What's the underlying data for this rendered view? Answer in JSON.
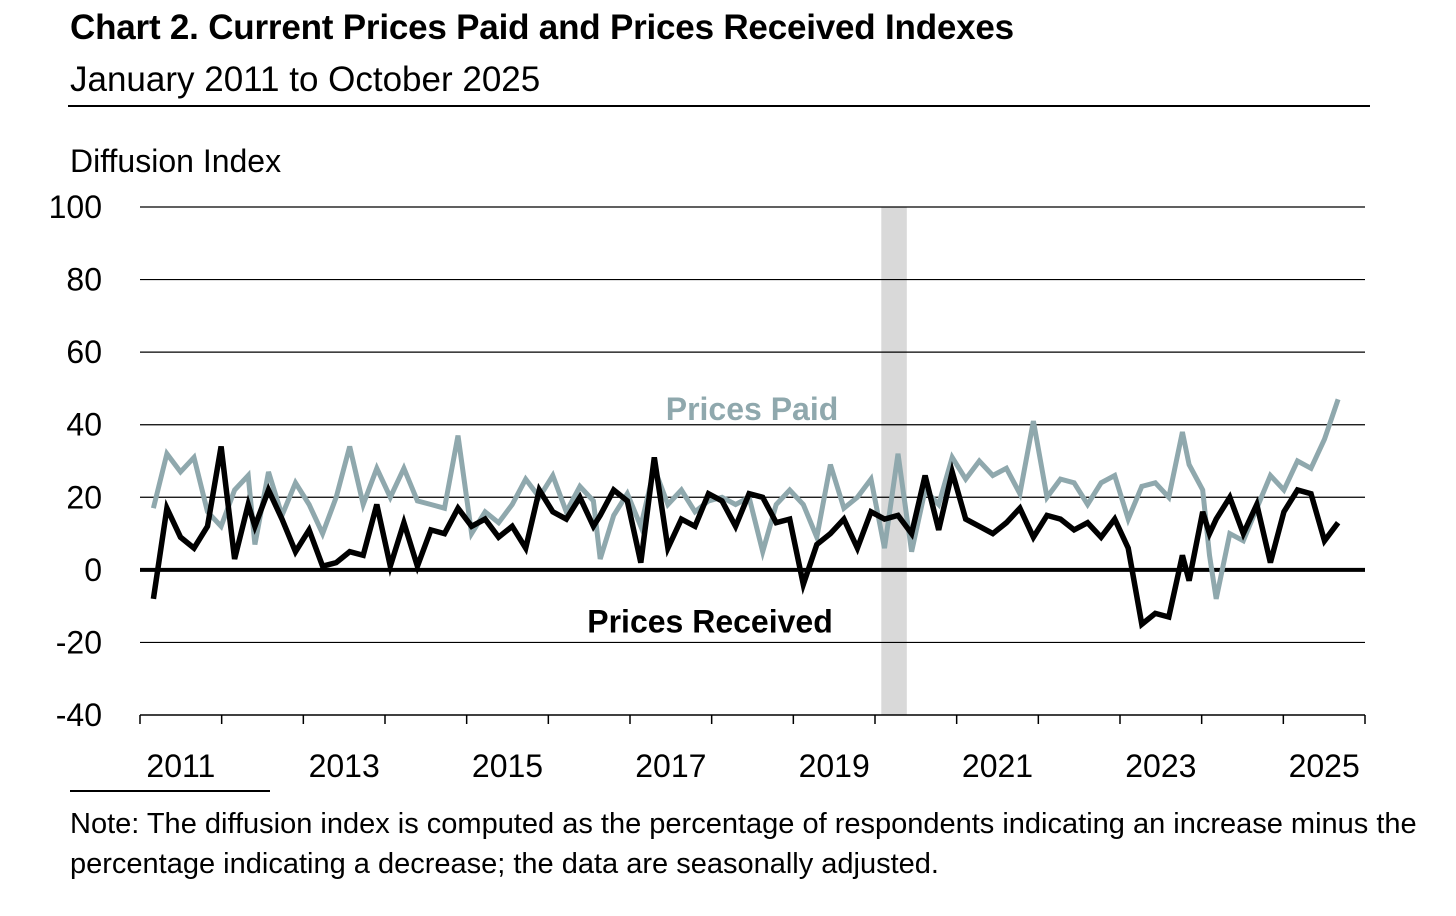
{
  "header": {
    "title": "Chart 2. Current Prices Paid and Prices Received Indexes",
    "subtitle": "January 2011 to October 2025"
  },
  "footer": {
    "note": "Note: The diffusion index is computed as the percentage of respondents indicating an increase minus the percentage indicating a decrease; the data are seasonally adjusted."
  },
  "colors": {
    "prices_paid": "#8fa8ad",
    "prices_received": "#000000",
    "recession_band": "#d9d9d9",
    "gridline": "#000000"
  },
  "chart_data": {
    "type": "line",
    "title": "Chart 2. Current Prices Paid and Prices Received Indexes",
    "subtitle": "January 2011 to October 2025",
    "ylabel": "Diffusion Index",
    "xlabel": "",
    "ylim": [
      -40,
      100
    ],
    "yticks": [
      "100",
      "80",
      "60",
      "40",
      "20",
      "0",
      "-20",
      "-40"
    ],
    "ytick_values": [
      100,
      80,
      60,
      40,
      20,
      0,
      -20,
      -40
    ],
    "xticks": [
      "2011",
      "2013",
      "2015",
      "2017",
      "2019",
      "2021",
      "2023",
      "2025"
    ],
    "x_start": "2011-01",
    "x_end": "2025-10",
    "grid": true,
    "shaded_period": {
      "start": "2020-02",
      "end": "2020-04"
    },
    "series": [
      {
        "name": "Prices Paid",
        "label_position": "above line, mid-2018",
        "points": [
          [
            "2011-01",
            17
          ],
          [
            "2011-03",
            32
          ],
          [
            "2011-05",
            27
          ],
          [
            "2011-07",
            31
          ],
          [
            "2011-09",
            16
          ],
          [
            "2011-11",
            12
          ],
          [
            "2012-01",
            22
          ],
          [
            "2012-03",
            26
          ],
          [
            "2012-04",
            7
          ],
          [
            "2012-06",
            27
          ],
          [
            "2012-08",
            15
          ],
          [
            "2012-10",
            24
          ],
          [
            "2012-12",
            18
          ],
          [
            "2013-02",
            10
          ],
          [
            "2013-04",
            20
          ],
          [
            "2013-06",
            34
          ],
          [
            "2013-08",
            18
          ],
          [
            "2013-10",
            28
          ],
          [
            "2013-12",
            20
          ],
          [
            "2014-02",
            28
          ],
          [
            "2014-04",
            19
          ],
          [
            "2014-06",
            18
          ],
          [
            "2014-08",
            17
          ],
          [
            "2014-10",
            37
          ],
          [
            "2014-12",
            10
          ],
          [
            "2015-02",
            16
          ],
          [
            "2015-04",
            13
          ],
          [
            "2015-06",
            18
          ],
          [
            "2015-08",
            25
          ],
          [
            "2015-10",
            20
          ],
          [
            "2015-12",
            26
          ],
          [
            "2016-02",
            16
          ],
          [
            "2016-04",
            23
          ],
          [
            "2016-06",
            19
          ],
          [
            "2016-07",
            3
          ],
          [
            "2016-09",
            15
          ],
          [
            "2016-11",
            21
          ],
          [
            "2017-01",
            12
          ],
          [
            "2017-03",
            28
          ],
          [
            "2017-05",
            18
          ],
          [
            "2017-07",
            22
          ],
          [
            "2017-09",
            16
          ],
          [
            "2017-11",
            19
          ],
          [
            "2018-01",
            20
          ],
          [
            "2018-03",
            18
          ],
          [
            "2018-05",
            20
          ],
          [
            "2018-07",
            5
          ],
          [
            "2018-09",
            18
          ],
          [
            "2018-11",
            22
          ],
          [
            "2019-01",
            18
          ],
          [
            "2019-03",
            9
          ],
          [
            "2019-05",
            29
          ],
          [
            "2019-07",
            17
          ],
          [
            "2019-09",
            20
          ],
          [
            "2019-11",
            25
          ],
          [
            "2020-01",
            6
          ],
          [
            "2020-03",
            32
          ],
          [
            "2020-05",
            5
          ],
          [
            "2020-07",
            22
          ],
          [
            "2020-09",
            18
          ],
          [
            "2020-11",
            31
          ],
          [
            "2021-01",
            25
          ],
          [
            "2021-03",
            30
          ],
          [
            "2021-05",
            26
          ],
          [
            "2021-07",
            28
          ],
          [
            "2021-09",
            21
          ],
          [
            "2021-11",
            41
          ],
          [
            "2022-01",
            20
          ],
          [
            "2022-03",
            25
          ],
          [
            "2022-05",
            24
          ],
          [
            "2022-07",
            18
          ],
          [
            "2022-09",
            24
          ],
          [
            "2022-11",
            26
          ],
          [
            "2023-01",
            14
          ],
          [
            "2023-03",
            23
          ],
          [
            "2023-05",
            24
          ],
          [
            "2023-07",
            20
          ],
          [
            "2023-09",
            38
          ],
          [
            "2023-10",
            29
          ],
          [
            "2023-12",
            22
          ],
          [
            "2024-01",
            4
          ],
          [
            "2024-02",
            -8
          ],
          [
            "2024-04",
            10
          ],
          [
            "2024-06",
            8
          ],
          [
            "2024-08",
            17
          ],
          [
            "2024-10",
            26
          ],
          [
            "2024-12",
            22
          ],
          [
            "2025-02",
            30
          ],
          [
            "2025-04",
            28
          ],
          [
            "2025-06",
            36
          ],
          [
            "2025-08",
            47
          ]
        ]
      },
      {
        "name": "Prices Received",
        "label_position": "below zero line, mid-2018",
        "points": [
          [
            "2011-01",
            -8
          ],
          [
            "2011-03",
            17
          ],
          [
            "2011-05",
            9
          ],
          [
            "2011-07",
            6
          ],
          [
            "2011-09",
            12
          ],
          [
            "2011-11",
            34
          ],
          [
            "2012-01",
            3
          ],
          [
            "2012-03",
            18
          ],
          [
            "2012-04",
            12
          ],
          [
            "2012-06",
            22
          ],
          [
            "2012-08",
            14
          ],
          [
            "2012-10",
            5
          ],
          [
            "2012-12",
            11
          ],
          [
            "2013-02",
            1
          ],
          [
            "2013-04",
            2
          ],
          [
            "2013-06",
            5
          ],
          [
            "2013-08",
            4
          ],
          [
            "2013-10",
            18
          ],
          [
            "2013-12",
            1
          ],
          [
            "2014-02",
            13
          ],
          [
            "2014-04",
            1
          ],
          [
            "2014-06",
            11
          ],
          [
            "2014-08",
            10
          ],
          [
            "2014-10",
            17
          ],
          [
            "2014-12",
            12
          ],
          [
            "2015-02",
            14
          ],
          [
            "2015-04",
            9
          ],
          [
            "2015-06",
            12
          ],
          [
            "2015-08",
            6
          ],
          [
            "2015-10",
            22
          ],
          [
            "2015-12",
            16
          ],
          [
            "2016-02",
            14
          ],
          [
            "2016-04",
            20
          ],
          [
            "2016-06",
            12
          ],
          [
            "2016-07",
            15
          ],
          [
            "2016-09",
            22
          ],
          [
            "2016-11",
            19
          ],
          [
            "2017-01",
            2
          ],
          [
            "2017-03",
            31
          ],
          [
            "2017-05",
            6
          ],
          [
            "2017-07",
            14
          ],
          [
            "2017-09",
            12
          ],
          [
            "2017-11",
            21
          ],
          [
            "2018-01",
            19
          ],
          [
            "2018-03",
            12
          ],
          [
            "2018-05",
            21
          ],
          [
            "2018-07",
            20
          ],
          [
            "2018-09",
            13
          ],
          [
            "2018-11",
            14
          ],
          [
            "2019-01",
            -4
          ],
          [
            "2019-03",
            7
          ],
          [
            "2019-05",
            10
          ],
          [
            "2019-07",
            14
          ],
          [
            "2019-09",
            6
          ],
          [
            "2019-11",
            16
          ],
          [
            "2020-01",
            14
          ],
          [
            "2020-03",
            15
          ],
          [
            "2020-05",
            10
          ],
          [
            "2020-07",
            26
          ],
          [
            "2020-09",
            11
          ],
          [
            "2020-11",
            27
          ],
          [
            "2021-01",
            14
          ],
          [
            "2021-03",
            12
          ],
          [
            "2021-05",
            10
          ],
          [
            "2021-07",
            13
          ],
          [
            "2021-09",
            17
          ],
          [
            "2021-11",
            9
          ],
          [
            "2022-01",
            15
          ],
          [
            "2022-03",
            14
          ],
          [
            "2022-05",
            11
          ],
          [
            "2022-07",
            13
          ],
          [
            "2022-09",
            9
          ],
          [
            "2022-11",
            14
          ],
          [
            "2023-01",
            6
          ],
          [
            "2023-03",
            -15
          ],
          [
            "2023-05",
            -12
          ],
          [
            "2023-07",
            -13
          ],
          [
            "2023-09",
            4
          ],
          [
            "2023-10",
            -3
          ],
          [
            "2023-12",
            16
          ],
          [
            "2024-01",
            10
          ],
          [
            "2024-02",
            14
          ],
          [
            "2024-04",
            20
          ],
          [
            "2024-06",
            10
          ],
          [
            "2024-08",
            18
          ],
          [
            "2024-10",
            2
          ],
          [
            "2024-12",
            16
          ],
          [
            "2025-02",
            22
          ],
          [
            "2025-04",
            21
          ],
          [
            "2025-06",
            8
          ],
          [
            "2025-08",
            13
          ]
        ]
      }
    ]
  }
}
